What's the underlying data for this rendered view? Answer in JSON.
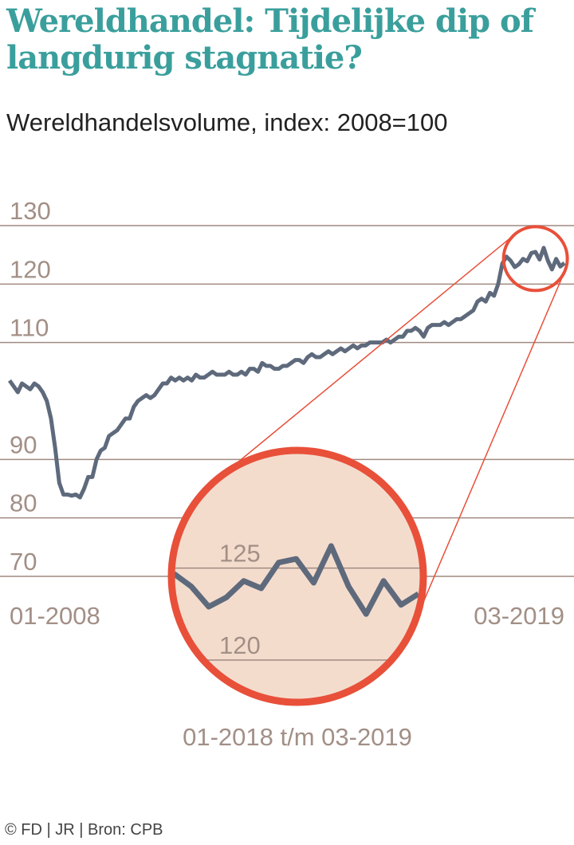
{
  "title": "Wereldhandel: Tijdelijke dip of langdurig stagnatie?",
  "subtitle": "Wereldhandelsvolume, index: 2008=100",
  "footer": "© FD | JR | Bron: CPB",
  "chart_data": [
    {
      "type": "line",
      "xlim": [
        "01-2008",
        "03-2019"
      ],
      "ylim": [
        70,
        130
      ],
      "yticks": [
        70,
        80,
        90,
        110,
        120,
        130
      ],
      "grid": true,
      "color": "#5e6a7c",
      "values": [
        103.5,
        102.5,
        101.5,
        103,
        102.5,
        102,
        103,
        102.5,
        101.5,
        100,
        97,
        92,
        86,
        84,
        84,
        83.8,
        84,
        83.5,
        85,
        87,
        87,
        90,
        91.5,
        92,
        94,
        94.5,
        95,
        96,
        97,
        97,
        99,
        100,
        100.5,
        101,
        100.5,
        101,
        102,
        103,
        103,
        104,
        103.5,
        104,
        103.5,
        104,
        103.5,
        104.5,
        104,
        104,
        104.5,
        105,
        104.5,
        104.5,
        104.5,
        105,
        104.5,
        104.5,
        105,
        104.5,
        105.5,
        105.5,
        105,
        106.5,
        106,
        106,
        105.5,
        105.5,
        106,
        106,
        106.5,
        107,
        107,
        106.5,
        107.5,
        108,
        107.5,
        107.5,
        108,
        108.5,
        108,
        108.5,
        109,
        108.5,
        109,
        109.5,
        109,
        109.5,
        109.5,
        110,
        110,
        110,
        110,
        110.5,
        110,
        110.5,
        111,
        111,
        112,
        112,
        112.5,
        112,
        111,
        112.5,
        113,
        113,
        113,
        113.5,
        113,
        113.5,
        114,
        114,
        114.5,
        115,
        115.5,
        117,
        117.5,
        117,
        118.5,
        118,
        120,
        123.5,
        124.7,
        124.0,
        122.9,
        123.4,
        124.3,
        123.9,
        125.3,
        125.5,
        124.2,
        126.2,
        124.0,
        122.5,
        124.3,
        123.0,
        123.6
      ]
    },
    {
      "type": "line",
      "xlabel": "01-2018 t/m 03-2019",
      "ylim": [
        117.7,
        131.4
      ],
      "yticks": [
        120,
        125
      ],
      "grid": true,
      "color": "#5e6a7c",
      "values": [
        124.7,
        124.0,
        122.9,
        123.4,
        124.3,
        123.9,
        125.3,
        125.5,
        124.2,
        126.2,
        124.0,
        122.5,
        124.3,
        123.0,
        123.6
      ]
    }
  ]
}
